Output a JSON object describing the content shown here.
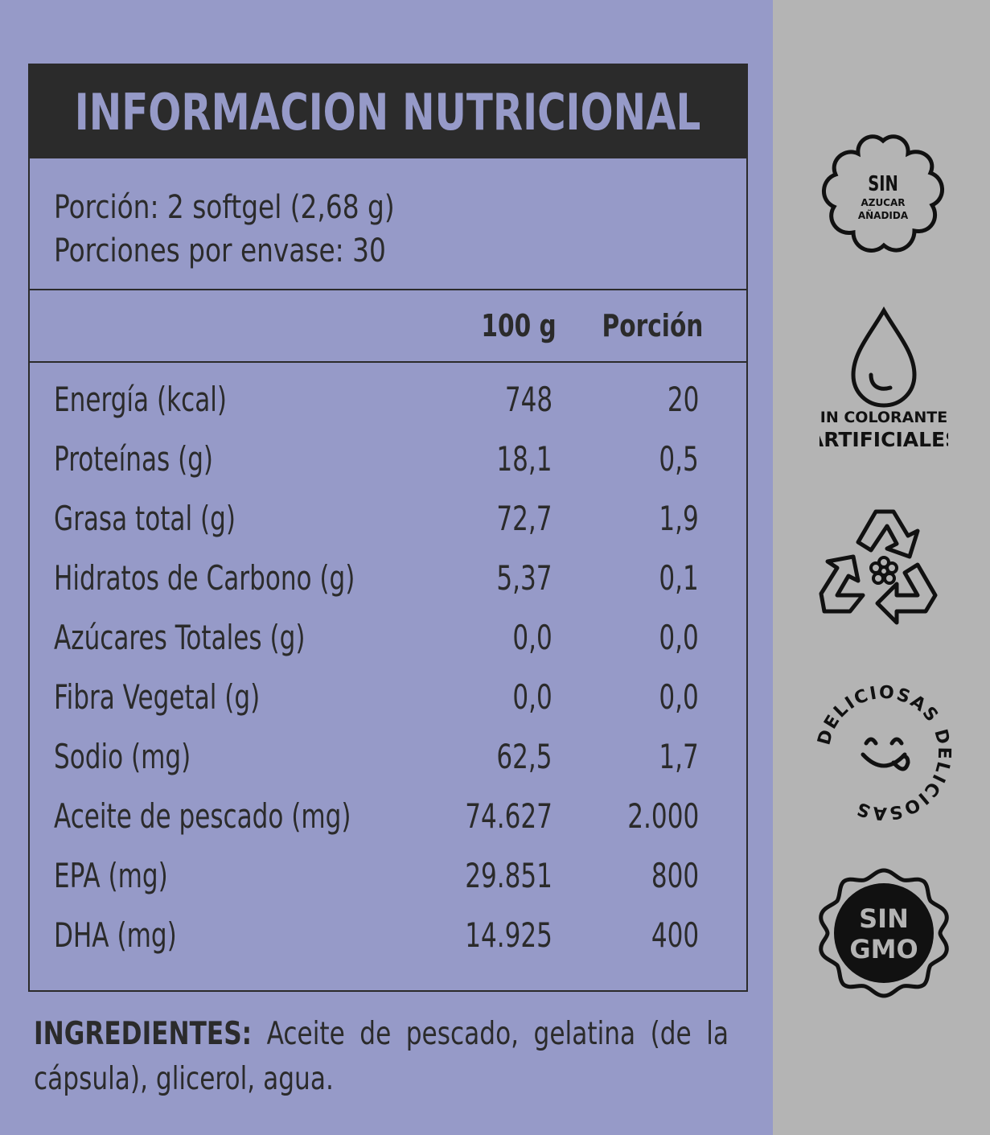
{
  "title": "INFORMACION NUTRICIONAL",
  "serving": {
    "line1": "Porción: 2 softgel (2,68 g)",
    "line2": "Porciones por envase: 30"
  },
  "columns": {
    "col1": "100 g",
    "col2": "Porción"
  },
  "rows": [
    {
      "name": "Energía (kcal)",
      "v100": "748",
      "portion": "20"
    },
    {
      "name": "Proteínas (g)",
      "v100": "18,1",
      "portion": "0,5"
    },
    {
      "name": "Grasa total (g)",
      "v100": "72,7",
      "portion": "1,9"
    },
    {
      "name": "Hidratos de Carbono (g)",
      "v100": "5,37",
      "portion": "0,1"
    },
    {
      "name": "Azúcares Totales (g)",
      "v100": "0,0",
      "portion": "0,0"
    },
    {
      "name": "Fibra Vegetal (g)",
      "v100": "0,0",
      "portion": "0,0"
    },
    {
      "name": "Sodio (mg)",
      "v100": "62,5",
      "portion": "1,7"
    },
    {
      "name": "Aceite de pescado (mg)",
      "v100": "74.627",
      "portion": "2.000"
    },
    {
      "name": "EPA (mg)",
      "v100": "29.851",
      "portion": "800"
    },
    {
      "name": "DHA (mg)",
      "v100": "14.925",
      "portion": "400"
    }
  ],
  "ingredients": {
    "label": "INGREDIENTES:",
    "text": " Aceite de pescado, gelatina (de la cápsula), glicerol, agua."
  },
  "badges": {
    "sugar": {
      "line1": "SIN",
      "line2": "AZUCAR",
      "line3": "AÑADIDA",
      "icon": "flower-badge-icon"
    },
    "colorants": {
      "line1": "SIN COLORANTES",
      "line2": "ARTIFICIALES",
      "icon": "water-drop-icon"
    },
    "recycle": {
      "icon": "recycle-icon"
    },
    "delicious": {
      "text": "DELICIOSAS DELICIOSAS",
      "icon": "tongue-face-icon"
    },
    "gmo": {
      "line1": "SIN",
      "line2": "GMO",
      "icon": "scalloped-seal-icon"
    }
  },
  "colors": {
    "lavender": "#969ac8",
    "dark": "#2b2b2b",
    "gray": "#b4b4b4"
  }
}
